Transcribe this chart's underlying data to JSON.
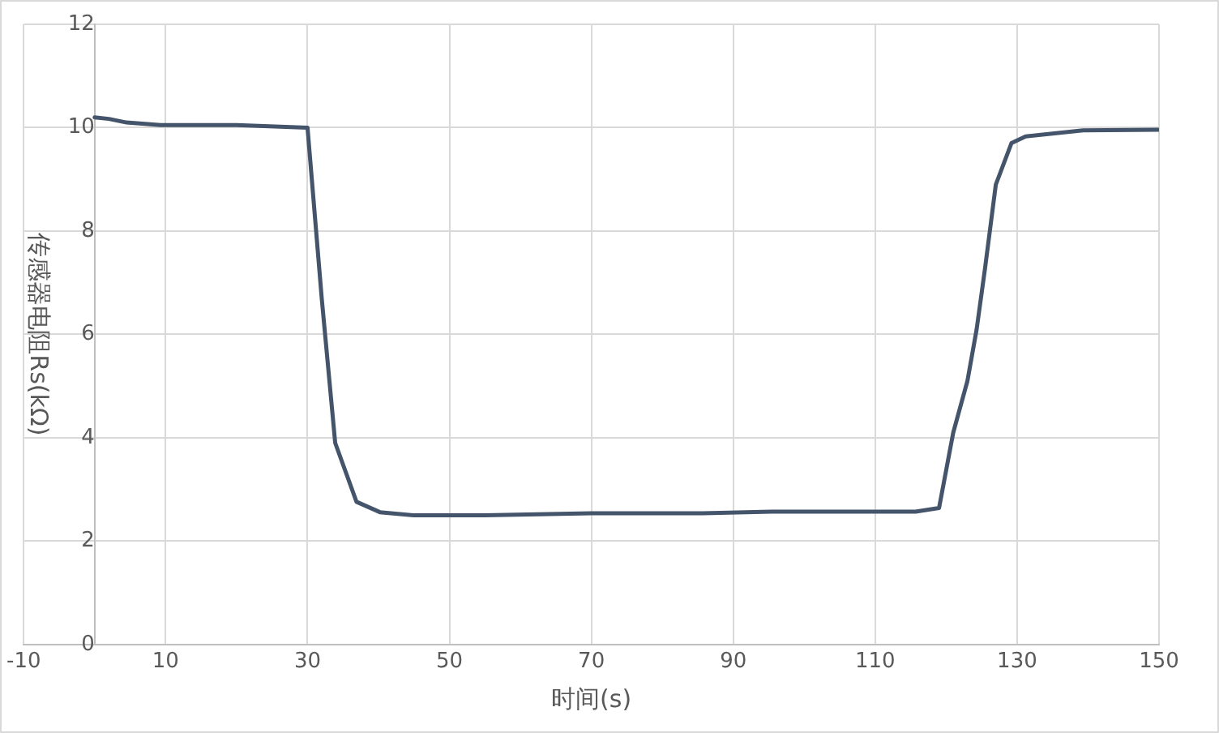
{
  "chart_data": {
    "type": "line",
    "xlabel": "时间(s)",
    "ylabel": "传感器电阻Rs(kΩ)",
    "series": [
      {
        "color": "#44546a",
        "x": [
          0,
          2,
          4.5,
          9.3,
          20,
          30,
          32,
          33.9,
          36.9,
          40.2,
          45,
          55,
          70,
          85.7,
          95.4,
          115.7,
          119,
          121,
          123,
          124.3,
          125.5,
          127,
          129.2,
          131.2,
          139.3,
          150
        ],
        "values": [
          10.2,
          10.17,
          10.1,
          10.05,
          10.05,
          10.0,
          6.7,
          3.9,
          2.76,
          2.56,
          2.5,
          2.5,
          2.54,
          2.54,
          2.57,
          2.57,
          2.64,
          4.1,
          5.1,
          6.1,
          7.3,
          8.9,
          9.7,
          9.83,
          9.95,
          9.96
        ]
      }
    ],
    "xlim": [
      -10,
      150
    ],
    "xticks": [
      -10,
      10,
      30,
      50,
      70,
      90,
      110,
      130,
      150
    ],
    "ylim": [
      0,
      12
    ],
    "yticks": [
      0,
      2,
      4,
      6,
      8,
      10,
      12
    ],
    "grid": true,
    "legend": false,
    "marker": "none",
    "line_style": "solid"
  }
}
